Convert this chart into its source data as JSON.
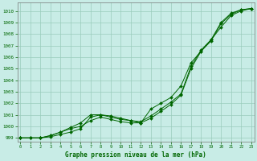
{
  "title": "Graphe pression niveau de la mer (hPa)",
  "background_color": "#c8ece6",
  "grid_color": "#99ccbb",
  "line_color": "#006600",
  "ylim": [
    998.7,
    1010.7
  ],
  "xlim": [
    -0.3,
    23.3
  ],
  "yticks": [
    999,
    1000,
    1001,
    1002,
    1003,
    1004,
    1005,
    1006,
    1007,
    1008,
    1009,
    1010
  ],
  "xticks": [
    0,
    1,
    2,
    3,
    4,
    5,
    6,
    7,
    8,
    9,
    10,
    11,
    12,
    13,
    14,
    15,
    16,
    17,
    18,
    19,
    20,
    21,
    22,
    23
  ],
  "series": [
    [
      999.0,
      999.0,
      999.0,
      999.1,
      999.3,
      999.5,
      999.8,
      1000.8,
      1001.0,
      1000.8,
      1000.6,
      1000.5,
      1000.4,
      1000.9,
      1001.5,
      1002.1,
      1002.8,
      1005.2,
      1006.6,
      1007.5,
      1008.6,
      1009.6,
      1010.0,
      1010.2
    ],
    [
      999.0,
      999.0,
      999.0,
      999.2,
      999.5,
      999.8,
      1000.0,
      1000.5,
      1000.8,
      1000.6,
      1000.4,
      1000.3,
      1000.3,
      1000.7,
      1001.3,
      1001.9,
      1002.7,
      1005.0,
      1006.5,
      1007.4,
      1008.9,
      1009.7,
      1010.1,
      1010.2
    ],
    [
      999.0,
      999.0,
      999.0,
      999.2,
      999.5,
      999.9,
      1000.3,
      1001.0,
      1001.0,
      1000.9,
      1000.7,
      1000.5,
      1000.3,
      1001.5,
      1002.0,
      1002.5,
      1003.5,
      1005.5,
      1006.5,
      1007.5,
      1009.0,
      1009.8,
      1010.1,
      1010.2
    ]
  ]
}
